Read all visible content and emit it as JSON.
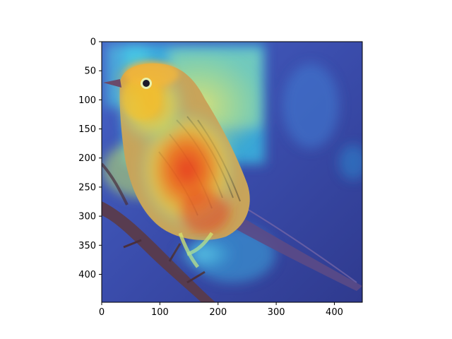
{
  "image": {
    "subject": "bird-on-branch",
    "overlay": "saliency-heatmap",
    "colormap": "jet"
  },
  "axes": {
    "x_ticks": [
      0,
      100,
      200,
      300,
      400
    ],
    "y_ticks": [
      0,
      50,
      100,
      150,
      200,
      250,
      300,
      350,
      400
    ],
    "x_range": [
      0,
      448
    ],
    "y_range": [
      0,
      448
    ],
    "y_inverted": true
  },
  "colors": {
    "heat_low": "#3c4fb8",
    "heat_cool": "#33c2e8",
    "heat_mid": "#d9e85a",
    "heat_warm": "#f5a623",
    "heat_hot": "#e8321c",
    "bird_throat": "#f2c22e",
    "branch": "#5b3a46"
  }
}
